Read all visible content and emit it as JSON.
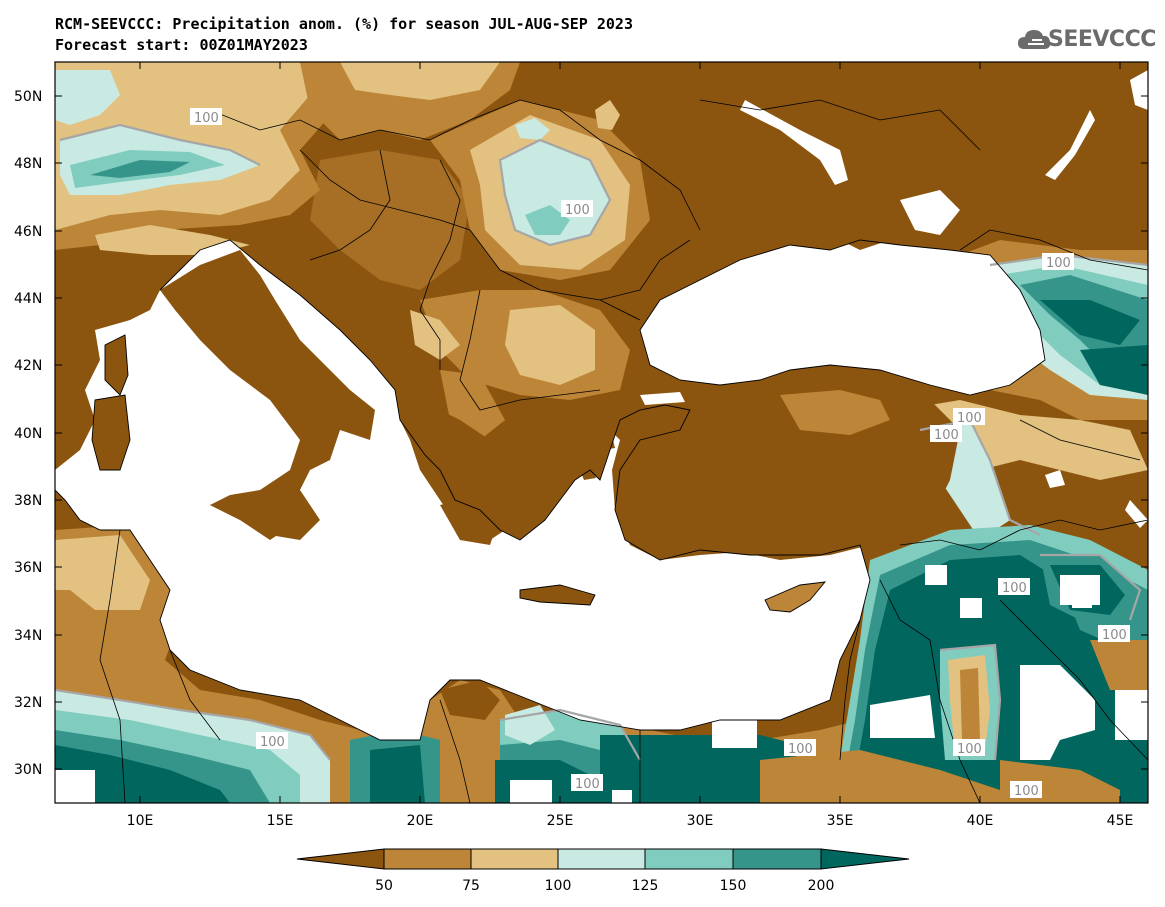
{
  "header": {
    "title_line1": "RCM-SEEVCCC: Precipitation anom. (%) for season JUL-AUG-SEP 2023",
    "title_line2": "Forecast start: 00Z01MAY2023",
    "logo_text": "SEEVCCC"
  },
  "axes": {
    "lat_labels": [
      "50N",
      "48N",
      "46N",
      "44N",
      "42N",
      "40N",
      "38N",
      "36N",
      "34N",
      "32N",
      "30N"
    ],
    "lon_labels": [
      "10E",
      "15E",
      "20E",
      "25E",
      "30E",
      "35E",
      "40E",
      "45E"
    ]
  },
  "contour_labels": [
    "100",
    "100",
    "100",
    "100",
    "100",
    "100",
    "100",
    "100",
    "100",
    "100",
    "100",
    "100"
  ],
  "colorbar": {
    "labels": [
      "50",
      "75",
      "100",
      "125",
      "150",
      "200"
    ],
    "colors": [
      "#8b5510",
      "#bd8537",
      "#e2c181",
      "#c8eae2",
      "#80cdc0",
      "#35958a",
      "#00665e"
    ]
  },
  "colors": {
    "ocean": "#ffffff",
    "below50": "#8b5510",
    "50_75": "#bd8537",
    "75_100": "#e2c181",
    "100_125": "#c8eae2",
    "125_150": "#80cdc0",
    "150_200": "#35958a",
    "above200": "#00665e",
    "contour100": "#a6a6a6"
  }
}
